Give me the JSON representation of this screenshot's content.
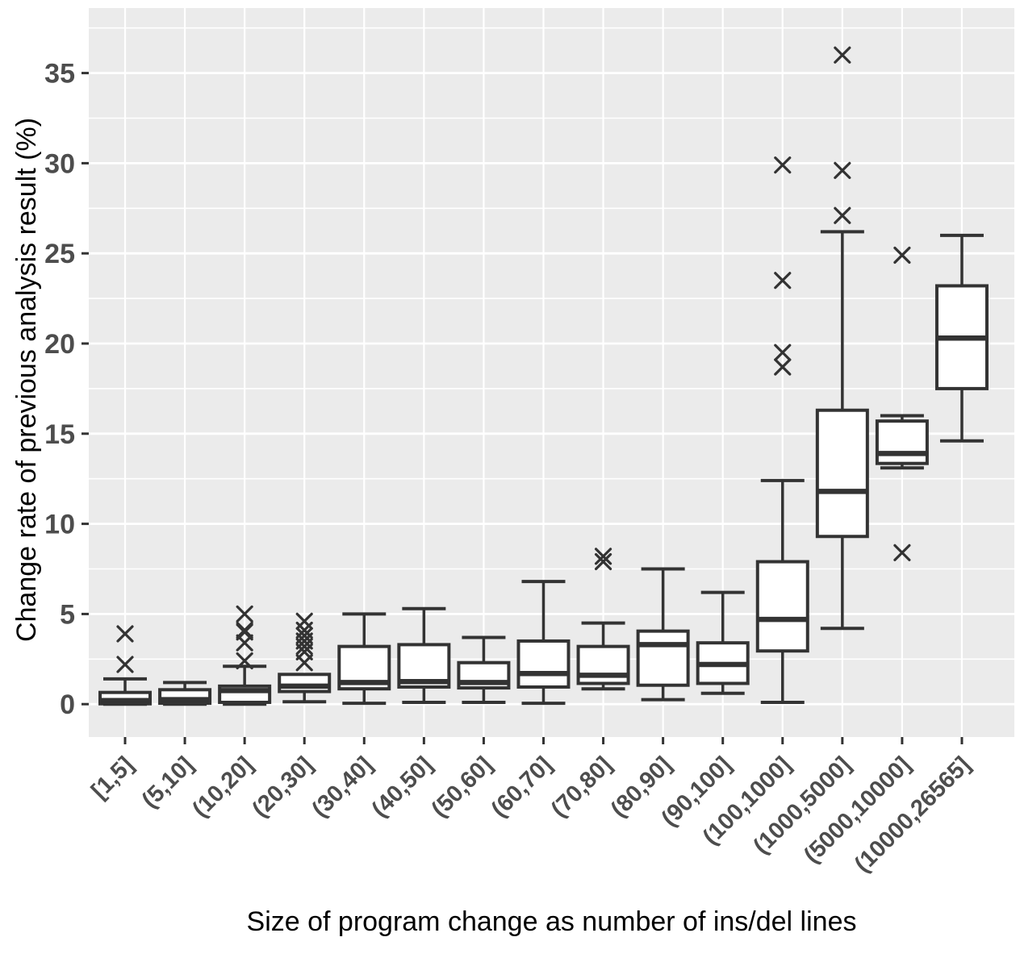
{
  "chart_data": {
    "type": "boxplot",
    "title": "",
    "xlabel": "Size of program change as number of ins/del lines",
    "ylabel": "Change rate of previous analysis result (%)",
    "ylim": [
      -1.8,
      38.5
    ],
    "yticks": [
      0,
      5,
      10,
      15,
      20,
      25,
      30,
      35
    ],
    "grid": {
      "horizontal_major_every": 5,
      "horizontal_minor_every": 2.5,
      "vertical_at_categories": true,
      "color": "#FFFFFF",
      "panel_bg": "#EBEBEB"
    },
    "legend": "none",
    "outlier_marker": "x-cross",
    "categories": [
      "[1,5]",
      "(5,10]",
      "(10,20]",
      "(20,30]",
      "(30,40]",
      "(40,50]",
      "(50,60]",
      "(60,70]",
      "(70,80]",
      "(80,90]",
      "(90,100]",
      "(100,1000]",
      "(1000,5000]",
      "(5000,10000]",
      "(10000,26565]"
    ],
    "boxes": [
      {
        "category": "[1,5]",
        "whisker_low": 0.0,
        "q1": 0.02,
        "median": 0.2,
        "q3": 0.65,
        "whisker_high": 1.4,
        "outliers": [
          3.9,
          2.2
        ]
      },
      {
        "category": "(5,10]",
        "whisker_low": 0.0,
        "q1": 0.05,
        "median": 0.25,
        "q3": 0.8,
        "whisker_high": 1.2,
        "outliers": []
      },
      {
        "category": "(10,20]",
        "whisker_low": 0.0,
        "q1": 0.1,
        "median": 0.75,
        "q3": 1.0,
        "whisker_high": 2.1,
        "outliers": [
          5.0,
          4.1,
          4.0,
          3.4,
          2.4
        ]
      },
      {
        "category": "(20,30]",
        "whisker_low": 0.13,
        "q1": 0.7,
        "median": 1.0,
        "q3": 1.65,
        "whisker_high": null,
        "outliers": [
          4.6,
          4.1,
          3.8,
          3.5,
          3.2,
          2.9,
          2.3
        ]
      },
      {
        "category": "(30,40]",
        "whisker_low": 0.05,
        "q1": 0.85,
        "median": 1.2,
        "q3": 3.2,
        "whisker_high": 5.0,
        "outliers": []
      },
      {
        "category": "(40,50]",
        "whisker_low": 0.1,
        "q1": 0.95,
        "median": 1.25,
        "q3": 3.3,
        "whisker_high": 5.3,
        "outliers": []
      },
      {
        "category": "(50,60]",
        "whisker_low": 0.1,
        "q1": 0.9,
        "median": 1.2,
        "q3": 2.3,
        "whisker_high": 3.7,
        "outliers": []
      },
      {
        "category": "(60,70]",
        "whisker_low": 0.05,
        "q1": 0.95,
        "median": 1.7,
        "q3": 3.5,
        "whisker_high": 6.8,
        "outliers": []
      },
      {
        "category": "(70,80]",
        "whisker_low": 0.85,
        "q1": 1.15,
        "median": 1.6,
        "q3": 3.2,
        "whisker_high": 4.5,
        "outliers": [
          8.2,
          7.9
        ]
      },
      {
        "category": "(80,90]",
        "whisker_low": 0.25,
        "q1": 1.05,
        "median": 3.3,
        "q3": 4.05,
        "whisker_high": 7.5,
        "outliers": []
      },
      {
        "category": "(90,100]",
        "whisker_low": 0.6,
        "q1": 1.15,
        "median": 2.2,
        "q3": 3.4,
        "whisker_high": 6.2,
        "outliers": []
      },
      {
        "category": "(100,1000]",
        "whisker_low": 0.1,
        "q1": 2.95,
        "median": 4.7,
        "q3": 7.9,
        "whisker_high": 12.4,
        "outliers": [
          29.9,
          23.5,
          19.5,
          18.7
        ]
      },
      {
        "category": "(1000,5000]",
        "whisker_low": 4.2,
        "q1": 9.3,
        "median": 11.8,
        "q3": 16.3,
        "whisker_high": 26.2,
        "outliers": [
          36.0,
          29.6,
          27.1
        ]
      },
      {
        "category": "(5000,10000]",
        "whisker_low": 13.1,
        "q1": 13.35,
        "median": 13.9,
        "q3": 15.7,
        "whisker_high": 16.0,
        "outliers": [
          24.9,
          8.4
        ]
      },
      {
        "category": "(10000,26565]",
        "whisker_low": 14.6,
        "q1": 17.5,
        "median": 20.3,
        "q3": 23.2,
        "whisker_high": 26.0,
        "outliers": []
      }
    ],
    "colors": {
      "panel_bg": "#EBEBEB",
      "gridline": "#FFFFFF",
      "box_stroke": "#333333",
      "box_fill": "#FFFFFF",
      "outlier": "#333333",
      "tick_label": "#4D4D4D",
      "axis_title": "#000000",
      "tick_mark": "#333333"
    }
  }
}
